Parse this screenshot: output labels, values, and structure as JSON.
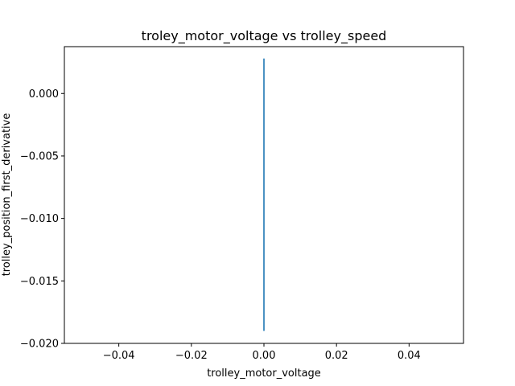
{
  "chart_data": {
    "type": "line",
    "title": "troley_motor_voltage vs trolley_speed",
    "xlabel": "trolley_motor_voltage",
    "ylabel": "trolley_position_first_derivative",
    "xlim": [
      -0.055,
      0.055
    ],
    "ylim": [
      -0.02,
      0.00375
    ],
    "x_ticks": [
      -0.04,
      -0.02,
      0.0,
      0.02,
      0.04
    ],
    "x_tick_labels": [
      "−0.04",
      "−0.02",
      "0.00",
      "0.02",
      "0.04"
    ],
    "y_ticks": [
      0.0,
      -0.005,
      -0.01,
      -0.015,
      -0.02
    ],
    "y_tick_labels": [
      "0.000",
      "−0.005",
      "−0.010",
      "−0.015",
      "−0.020"
    ],
    "grid": false,
    "series": [
      {
        "color": "#1f77b4",
        "x": [
          0.0,
          0.0
        ],
        "y": [
          -0.019,
          0.0028
        ]
      }
    ]
  }
}
